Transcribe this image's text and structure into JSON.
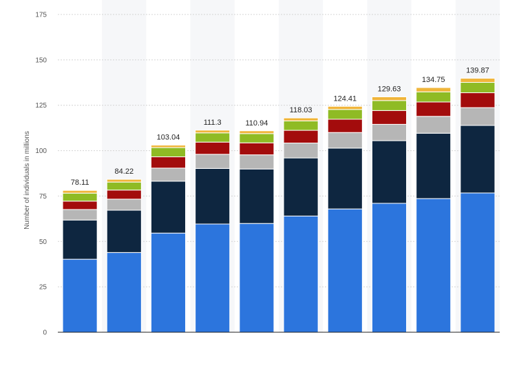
{
  "chart_data": {
    "type": "bar",
    "stacked": true,
    "title": "",
    "xlabel": "",
    "ylabel": "Number of individuals in millions",
    "ylim": [
      0,
      175
    ],
    "yticks": [
      0,
      25,
      50,
      75,
      100,
      125,
      150,
      175
    ],
    "grid": true,
    "legend": "none",
    "categories": [
      "",
      "",
      "",
      "",
      "",
      "",
      "",
      "",
      "",
      ""
    ],
    "totals": [
      78.11,
      84.22,
      103.04,
      111.3,
      110.94,
      118.03,
      124.41,
      129.63,
      134.75,
      139.87
    ],
    "series": [
      {
        "color": "#2c75dd",
        "values": [
          40.2,
          43.9,
          54.6,
          59.6,
          59.9,
          64.0,
          67.9,
          71.0,
          73.6,
          76.7
        ]
      },
      {
        "color": "#0e2640",
        "values": [
          21.6,
          23.3,
          28.6,
          30.6,
          30.0,
          32.0,
          33.5,
          34.5,
          36.0,
          37.2
        ]
      },
      {
        "color": "#b6b6b6",
        "values": [
          5.8,
          6.1,
          7.2,
          7.8,
          7.8,
          8.2,
          8.6,
          9.0,
          9.3,
          9.8
        ]
      },
      {
        "color": "#a30c0c",
        "values": [
          4.6,
          5.0,
          6.2,
          6.7,
          6.6,
          7.0,
          7.3,
          7.6,
          7.9,
          8.2
        ]
      },
      {
        "color": "#8fbb24",
        "values": [
          4.4,
          4.4,
          5.1,
          5.1,
          5.1,
          5.2,
          5.4,
          5.5,
          5.6,
          5.7
        ]
      },
      {
        "color": "#f0b53a",
        "values": [
          1.51,
          1.52,
          1.34,
          1.5,
          1.54,
          1.63,
          1.71,
          2.03,
          2.35,
          2.27
        ]
      }
    ]
  }
}
